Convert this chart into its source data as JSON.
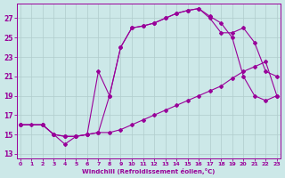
{
  "xlabel": "Windchill (Refroidissement éolien,°C)",
  "bg_color": "#cce8e8",
  "line_color": "#990099",
  "grid_color": "#b0cccc",
  "xticks": [
    0,
    1,
    2,
    3,
    4,
    5,
    6,
    7,
    8,
    9,
    10,
    11,
    12,
    13,
    14,
    15,
    16,
    17,
    18,
    19,
    20,
    21,
    22,
    23
  ],
  "yticks": [
    13,
    15,
    17,
    19,
    21,
    23,
    25,
    27
  ],
  "line1_x": [
    0,
    1,
    2,
    3,
    4,
    5,
    6,
    7,
    8,
    9,
    10,
    11,
    12,
    13,
    14,
    15,
    16,
    17,
    18,
    19,
    20,
    21,
    22,
    23
  ],
  "line1_y": [
    16,
    16,
    16,
    15,
    14.8,
    14.8,
    15,
    15.2,
    15.2,
    15.5,
    16,
    16.5,
    17,
    17.5,
    18,
    18.5,
    19,
    19.5,
    20,
    20.8,
    21.5,
    22,
    22.5,
    19
  ],
  "line2_x": [
    0,
    2,
    3,
    4,
    5,
    6,
    7,
    8,
    9,
    10,
    11,
    12,
    13,
    14,
    15,
    16,
    17,
    18,
    19,
    20,
    21,
    22,
    23
  ],
  "line2_y": [
    16,
    16,
    15,
    14.8,
    14.8,
    15,
    21.5,
    19.0,
    24,
    26,
    26.2,
    26.5,
    27,
    27.5,
    27.8,
    28,
    27.2,
    26.5,
    25,
    21,
    19,
    18.5,
    19
  ],
  "line3_x": [
    0,
    2,
    3,
    4,
    5,
    6,
    7,
    8,
    9,
    10,
    11,
    12,
    13,
    14,
    15,
    16,
    17,
    18,
    19,
    20,
    21,
    22,
    23
  ],
  "line3_y": [
    16,
    16,
    15,
    14.0,
    14.8,
    15,
    15.2,
    19,
    24,
    26,
    26.2,
    26.5,
    27,
    27.5,
    27.8,
    28,
    27.0,
    25.5,
    25.5,
    26,
    24.5,
    21.5,
    21
  ]
}
